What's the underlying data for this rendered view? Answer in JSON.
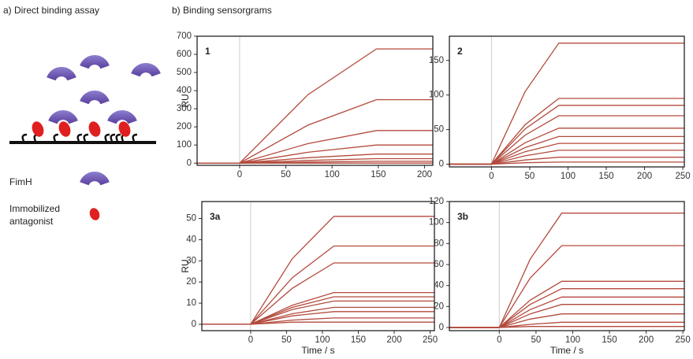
{
  "panel_a": {
    "title": "a) Direct binding assay",
    "fimh_label": "FimH",
    "antagonist_label": [
      "Immobilized",
      "antagonist"
    ]
  },
  "panel_b": {
    "title": "b) Binding sensorgrams"
  },
  "chart_data": [
    {
      "type": "line",
      "label": "1",
      "y_label": "RU",
      "color": "#b34a3c",
      "x": [
        -46,
        0,
        74,
        148,
        209
      ],
      "xlim": [
        -46,
        209
      ],
      "xticks": [
        0,
        50,
        100,
        150,
        200
      ],
      "ylim": [
        -12,
        700
      ],
      "yticks": [
        0,
        100,
        200,
        300,
        400,
        500,
        600,
        700
      ],
      "series": [
        {
          "values": [
            0,
            0,
            378,
            630,
            630
          ]
        },
        {
          "values": [
            0,
            0,
            210,
            350,
            350
          ]
        },
        {
          "values": [
            0,
            0,
            108,
            180,
            180
          ]
        },
        {
          "values": [
            0,
            0,
            60,
            100,
            100
          ]
        },
        {
          "values": [
            0,
            0,
            30,
            50,
            50
          ]
        },
        {
          "values": [
            0,
            0,
            15,
            25,
            25
          ]
        },
        {
          "values": [
            0,
            0,
            6,
            10,
            10
          ]
        },
        {
          "values": [
            0,
            0,
            0,
            0,
            0
          ]
        }
      ]
    },
    {
      "type": "line",
      "label": "2",
      "color": "#b34a3c",
      "x": [
        -55,
        0,
        44,
        88,
        252
      ],
      "xlim": [
        -55,
        252
      ],
      "xticks": [
        0,
        50,
        100,
        150,
        200,
        250
      ],
      "ylim": [
        -4,
        185
      ],
      "yticks": [
        0,
        50,
        100,
        150
      ],
      "series": [
        {
          "values": [
            0,
            0,
            105,
            175,
            175
          ]
        },
        {
          "values": [
            0,
            0,
            57,
            95,
            95
          ]
        },
        {
          "values": [
            0,
            0,
            51,
            85,
            85
          ]
        },
        {
          "values": [
            0,
            0,
            42,
            70,
            70
          ]
        },
        {
          "values": [
            0,
            0,
            31,
            52,
            52
          ]
        },
        {
          "values": [
            0,
            0,
            24,
            40,
            40
          ]
        },
        {
          "values": [
            0,
            0,
            18,
            30,
            30
          ]
        },
        {
          "values": [
            0,
            0,
            12,
            20,
            20
          ]
        },
        {
          "values": [
            0,
            0,
            6,
            10,
            10
          ]
        },
        {
          "values": [
            0,
            0,
            2,
            3,
            3
          ]
        }
      ]
    },
    {
      "type": "line",
      "label": "3a",
      "y_label": "RU",
      "x_label": "Time / s",
      "color": "#b34a3c",
      "x": [
        -68,
        0,
        58,
        116,
        256
      ],
      "xlim": [
        -68,
        256
      ],
      "xticks": [
        0,
        50,
        100,
        150,
        200,
        250
      ],
      "ylim": [
        -3,
        58
      ],
      "yticks": [
        0,
        10,
        20,
        30,
        40,
        50
      ],
      "series": [
        {
          "values": [
            0,
            0,
            31,
            51,
            51
          ]
        },
        {
          "values": [
            0,
            0,
            22,
            37,
            37
          ]
        },
        {
          "values": [
            0,
            0,
            17,
            29,
            29
          ]
        },
        {
          "values": [
            0,
            0,
            9,
            15,
            15
          ]
        },
        {
          "values": [
            0,
            0,
            8,
            13,
            13
          ]
        },
        {
          "values": [
            0,
            0,
            7,
            11,
            11
          ]
        },
        {
          "values": [
            0,
            0,
            5,
            8,
            8
          ]
        },
        {
          "values": [
            0,
            0,
            4,
            6,
            6
          ]
        },
        {
          "values": [
            0,
            0,
            2,
            3,
            3
          ]
        },
        {
          "values": [
            0,
            0,
            1,
            1,
            1
          ]
        }
      ]
    },
    {
      "type": "line",
      "label": "3b",
      "x_label": "Time / s",
      "color": "#b34a3c",
      "x": [
        -68,
        0,
        42,
        85,
        252
      ],
      "xlim": [
        -68,
        252
      ],
      "xticks": [
        0,
        50,
        100,
        150,
        200,
        250
      ],
      "ylim": [
        -3,
        120
      ],
      "yticks": [
        0,
        20,
        40,
        60,
        80,
        100,
        120
      ],
      "series": [
        {
          "values": [
            0,
            0,
            65,
            109,
            109
          ]
        },
        {
          "values": [
            0,
            0,
            47,
            78,
            78
          ]
        },
        {
          "values": [
            0,
            0,
            26,
            44,
            44
          ]
        },
        {
          "values": [
            0,
            0,
            22,
            37,
            37
          ]
        },
        {
          "values": [
            0,
            0,
            17,
            29,
            29
          ]
        },
        {
          "values": [
            0,
            0,
            13,
            22,
            22
          ]
        },
        {
          "values": [
            0,
            0,
            8,
            13,
            13
          ]
        },
        {
          "values": [
            0,
            0,
            3,
            5,
            5
          ]
        },
        {
          "values": [
            0,
            0,
            1,
            1,
            1
          ]
        }
      ]
    }
  ]
}
